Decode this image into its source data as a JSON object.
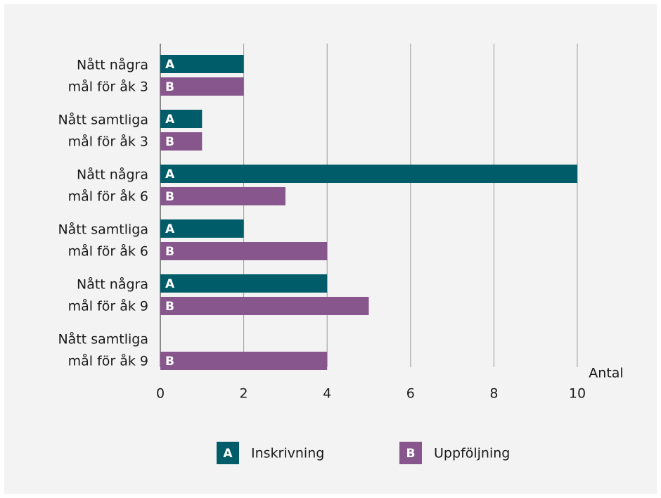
{
  "chart_data": {
    "type": "bar",
    "orientation": "horizontal",
    "categories": [
      [
        "Nått några",
        "mål för åk 3"
      ],
      [
        "Nått samtliga",
        "mål för åk 3"
      ],
      [
        "Nått några",
        "mål för åk 6"
      ],
      [
        "Nått samtliga",
        "mål för åk 6"
      ],
      [
        "Nått några",
        "mål för åk 9"
      ],
      [
        "Nått samtliga",
        "mål för åk 9"
      ]
    ],
    "series": [
      {
        "name": "Inskrivning",
        "label": "A",
        "color": "#005c68",
        "values": [
          2,
          1,
          10,
          2,
          4,
          null
        ]
      },
      {
        "name": "Uppföljning",
        "label": "B",
        "color": "#87568c",
        "values": [
          2,
          1,
          3,
          4,
          5,
          4
        ]
      }
    ],
    "xlabel": "Antal",
    "xlim": [
      0,
      10
    ],
    "xticks": [
      0,
      2,
      4,
      6,
      8,
      10
    ],
    "grid": true,
    "legend": "bottom"
  }
}
